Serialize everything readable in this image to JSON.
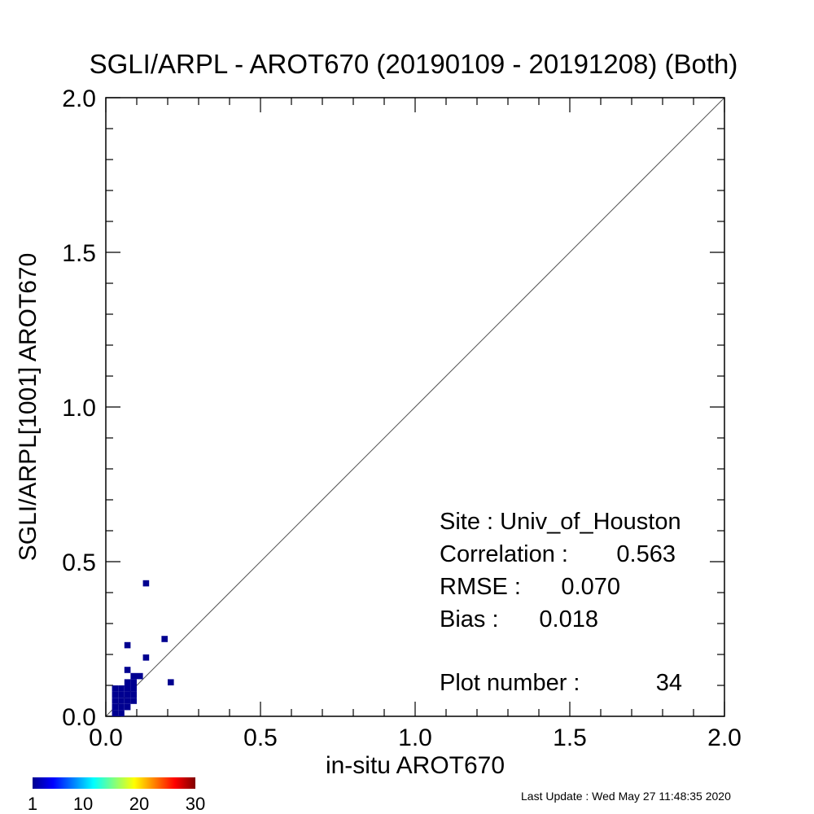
{
  "chart_data": {
    "type": "heatmap",
    "title": "SGLI/ARPL - AROT670 (20190109 - 20191208) (Both)",
    "xlabel": "in-situ AROT670",
    "ylabel": "SGLI/ARPL[1001]    AROT670",
    "xlim": [
      0.0,
      2.0
    ],
    "ylim": [
      0.0,
      2.0
    ],
    "x_ticks": [
      "0.0",
      "0.5",
      "1.0",
      "1.5",
      "2.0"
    ],
    "y_ticks": [
      "0.0",
      "0.5",
      "1.0",
      "1.5",
      "2.0"
    ],
    "one_to_one_line": true,
    "bin_size": 0.02,
    "points": [
      {
        "x": 0.02,
        "y": 0.0
      },
      {
        "x": 0.04,
        "y": 0.0
      },
      {
        "x": 0.02,
        "y": 0.02
      },
      {
        "x": 0.04,
        "y": 0.02
      },
      {
        "x": 0.06,
        "y": 0.02
      },
      {
        "x": 0.02,
        "y": 0.04
      },
      {
        "x": 0.04,
        "y": 0.04
      },
      {
        "x": 0.06,
        "y": 0.04
      },
      {
        "x": 0.08,
        "y": 0.04
      },
      {
        "x": 0.02,
        "y": 0.06
      },
      {
        "x": 0.04,
        "y": 0.06
      },
      {
        "x": 0.06,
        "y": 0.06
      },
      {
        "x": 0.08,
        "y": 0.06
      },
      {
        "x": 0.02,
        "y": 0.08
      },
      {
        "x": 0.04,
        "y": 0.08
      },
      {
        "x": 0.06,
        "y": 0.08
      },
      {
        "x": 0.08,
        "y": 0.08
      },
      {
        "x": 0.06,
        "y": 0.1
      },
      {
        "x": 0.08,
        "y": 0.1
      },
      {
        "x": 0.08,
        "y": 0.12
      },
      {
        "x": 0.1,
        "y": 0.12
      },
      {
        "x": 0.06,
        "y": 0.14
      },
      {
        "x": 0.2,
        "y": 0.1
      },
      {
        "x": 0.12,
        "y": 0.18
      },
      {
        "x": 0.06,
        "y": 0.22
      },
      {
        "x": 0.18,
        "y": 0.24
      },
      {
        "x": 0.12,
        "y": 0.42
      }
    ],
    "colorbar": {
      "ticks": [
        "1",
        "10",
        "20",
        "30"
      ],
      "min": 1,
      "max": 30,
      "colormap": "jet"
    },
    "annotations": {
      "site": "Site : Univ_of_Houston",
      "correlation_label": "Correlation :",
      "correlation_value": "0.563",
      "rmse_label": "RMSE :",
      "rmse_value": "0.070",
      "bias_label": "Bias :",
      "bias_value": "0.018",
      "plot_number_label": "Plot number :",
      "plot_number_value": "34"
    },
    "footer": "Last Update : Wed May 27 11:48:35 2020",
    "colors": {
      "marker": "#000090",
      "axis": "#000000",
      "diagonal": "#555555",
      "background": "#ffffff"
    }
  }
}
